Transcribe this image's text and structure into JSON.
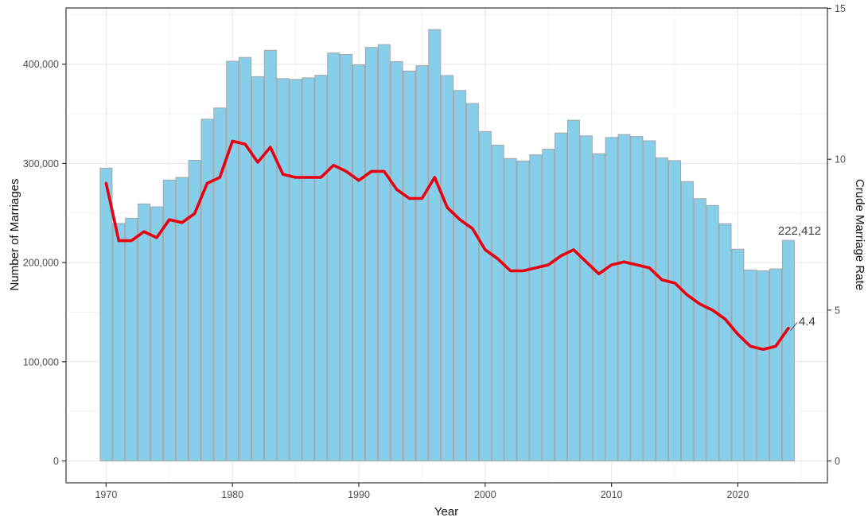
{
  "chart": {
    "xlabel": "Year",
    "ylabel_left": "Number of Marriages",
    "ylabel_right": "Crude Marriage Rate",
    "annotations": {
      "marriages_label": "222,412",
      "rate_label": "4.4"
    },
    "colors": {
      "bar_fill": "#87CEEB",
      "bar_stroke": "#a6a6a6",
      "line": "#e8000e",
      "grid_major": "#e5e5e5",
      "grid_minor": "#f2f2f2",
      "panel_border": "#333333",
      "tick_mark": "#333333",
      "tick_label": "#4d4d4d",
      "annotation_text": "#3d3d3d",
      "leader_line": "#555555",
      "background": "#ffffff"
    }
  },
  "chart_data": {
    "type": "bar",
    "title": "",
    "xlabel": "Year",
    "ylabel": "Number of Marriages",
    "ylabel_right": "Crude Marriage Rate",
    "x": [
      1970,
      1971,
      1972,
      1973,
      1974,
      1975,
      1976,
      1977,
      1978,
      1979,
      1980,
      1981,
      1982,
      1983,
      1984,
      1985,
      1986,
      1987,
      1988,
      1989,
      1990,
      1991,
      1992,
      1993,
      1994,
      1995,
      1996,
      1997,
      1998,
      1999,
      2000,
      2001,
      2002,
      2003,
      2004,
      2005,
      2006,
      2007,
      2008,
      2009,
      2010,
      2011,
      2012,
      2013,
      2014,
      2015,
      2016,
      2017,
      2018,
      2019,
      2020,
      2021,
      2022,
      2023,
      2024
    ],
    "series": [
      {
        "name": "Number of Marriages",
        "type": "bar",
        "axis": "left",
        "values": [
          295137,
          239457,
          244780,
          259112,
          256173,
          283226,
          285910,
          303156,
          344557,
          355846,
          403031,
          406795,
          387468,
          413940,
          385459,
          384686,
          386256,
          388883,
          411287,
          409786,
          399312,
          416872,
          419774,
          402593,
          393121,
          398484,
          434911,
          388591,
          373500,
          360407,
          332090,
          318407,
          304877,
          302503,
          308598,
          314304,
          330634,
          343559,
          327715,
          309759,
          326104,
          329087,
          327073,
          322807,
          305507,
          302828,
          281635,
          264455,
          257622,
          239159,
          213502,
          192507,
          191690,
          193657,
          222412
        ]
      },
      {
        "name": "Crude Marriage Rate",
        "type": "line",
        "axis": "right",
        "values": [
          9.2,
          7.3,
          7.3,
          7.6,
          7.4,
          8.0,
          7.9,
          8.2,
          9.2,
          9.4,
          10.6,
          10.5,
          9.9,
          10.4,
          9.5,
          9.4,
          9.4,
          9.4,
          9.8,
          9.6,
          9.3,
          9.6,
          9.6,
          9.0,
          8.7,
          8.7,
          9.4,
          8.4,
          8.0,
          7.7,
          7.0,
          6.7,
          6.3,
          6.3,
          6.4,
          6.5,
          6.8,
          7.0,
          6.6,
          6.2,
          6.5,
          6.6,
          6.5,
          6.4,
          6.0,
          5.9,
          5.5,
          5.2,
          5.0,
          4.7,
          4.2,
          3.8,
          3.7,
          3.8,
          4.4
        ]
      }
    ],
    "left_axis": {
      "ticks": [
        0,
        100000,
        200000,
        300000,
        400000
      ],
      "range": [
        0,
        456000
      ],
      "grid_minor_ticks": [
        50000,
        150000,
        250000,
        350000,
        450000
      ]
    },
    "right_axis": {
      "ticks": [
        0,
        5,
        10,
        15
      ],
      "range": [
        0,
        15
      ]
    },
    "x_ticks": [
      1970,
      1980,
      1990,
      2000,
      2010,
      2020
    ],
    "x_minor_ticks": [
      1975,
      1985,
      1995,
      2005,
      2015,
      2025
    ],
    "grid": true,
    "legend": "none",
    "annotations": [
      {
        "x": 2024,
        "series": "Number of Marriages",
        "text": "222,412"
      },
      {
        "x": 2024,
        "series": "Crude Marriage Rate",
        "text": "4.4"
      }
    ]
  }
}
